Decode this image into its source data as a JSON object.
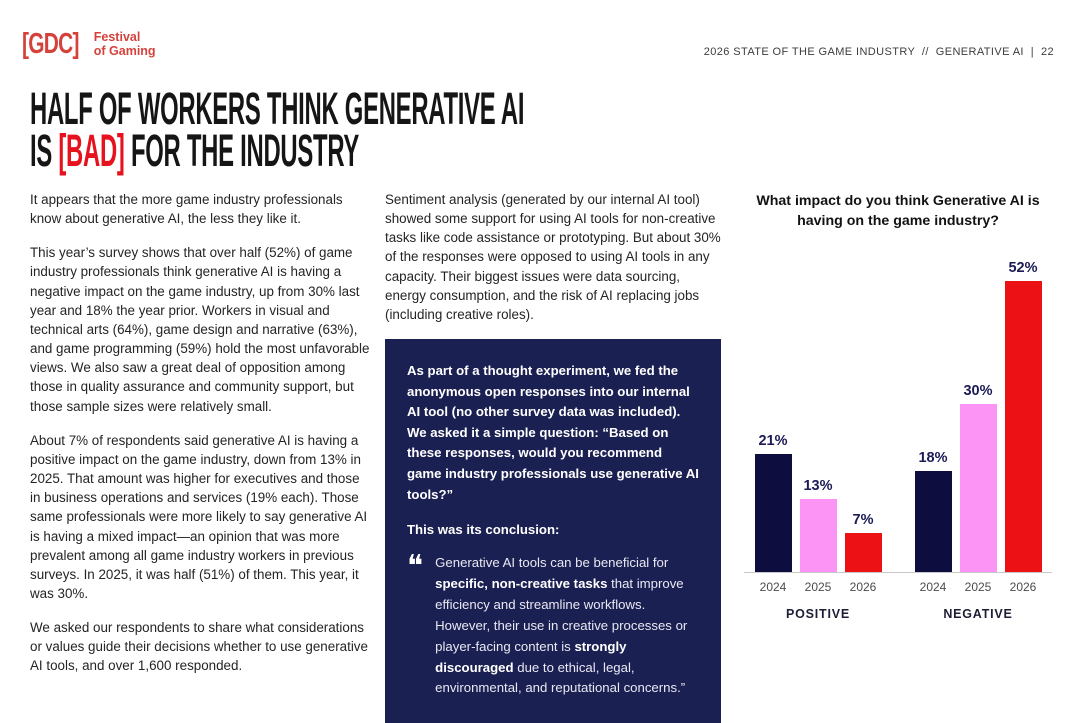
{
  "header": {
    "logo": {
      "mark": "[GDC]",
      "line1": "Festival",
      "line2": "of Gaming",
      "color": "#d5423c"
    },
    "meta": "2026 STATE OF THE GAME INDUSTRY  //  GENERATIVE AI  |  22"
  },
  "title": {
    "line1": "HALF OF WORKERS THINK GENERATIVE AI",
    "line2_pre": "IS ",
    "line2_red": "[BAD]",
    "line2_post": " FOR THE INDUSTRY",
    "red_color": "#e6131f"
  },
  "left_column": {
    "paragraphs": [
      "It appears that the more game industry professionals know about generative AI, the less they like it.",
      "This year’s survey shows that over half (52%) of game industry professionals think generative AI is having a negative impact on the game industry, up from 30% last year and 18% the year prior. Workers in visual and technical arts (64%), game design and narrative (63%), and game programming (59%) hold the most unfavorable views. We also saw a great deal of opposition among those in quality assurance and community support, but those sample sizes were relatively small.",
      "About 7% of respondents said generative AI is having a positive impact on the game industry, down from 13% in 2025. That amount was higher for executives and those in business operations and services (19% each). Those same professionals were more likely to say generative AI is having a mixed impact—an opinion that was more prevalent among all game industry workers in previous surveys. In 2025, it was half (51%) of them. This year, it was 30%.",
      "We asked our respondents to share what considerations or values guide their decisions whether to use generative AI tools, and over 1,600 responded."
    ]
  },
  "middle_column": {
    "paragraph": "Sentiment analysis (generated by our internal AI tool) showed some support for using AI tools for non-creative tasks like code assistance or prototyping. But about 30% of the responses were opposed to using AI tools in any capacity. Their biggest issues were data sourcing, energy consumption, and the risk of AI replacing jobs (including creative roles).",
    "callout": {
      "bg_color": "#1b2052",
      "intro": "As part of a thought experiment, we fed the anonymous open responses into our internal AI tool (no other survey data was included). We asked it a simple question: “Based on these responses, would you recommend game industry professionals use generative AI tools?”",
      "conclusion_label": "This was its conclusion:",
      "quote_icon": "❝",
      "quote_segments": [
        {
          "text": "Generative AI tools can be beneficial for ",
          "bold": false
        },
        {
          "text": "specific, non-creative tasks",
          "bold": true
        },
        {
          "text": " that improve efficiency and streamline workflows. However, their use in creative processes or player-facing content is ",
          "bold": false
        },
        {
          "text": "strongly discouraged",
          "bold": true
        },
        {
          "text": " due to ethical, legal, environmental, and reputational concerns.”",
          "bold": false
        }
      ]
    }
  },
  "chart_data": {
    "type": "bar",
    "title": "What impact do you think Generative AI is having on the game industry?",
    "unit": "%",
    "ylim": [
      0,
      55
    ],
    "grid": false,
    "legend": "none",
    "value_labels": true,
    "bar_colors": {
      "2024": "#0d0d3f",
      "2025": "#fb94f5",
      "2026": "#ec1115"
    },
    "value_label_color": "#1b1b55",
    "groups": [
      {
        "label": "POSITIVE",
        "categories": [
          "2024",
          "2025",
          "2026"
        ],
        "values": [
          21,
          13,
          7
        ]
      },
      {
        "label": "NEGATIVE",
        "categories": [
          "2024",
          "2025",
          "2026"
        ],
        "values": [
          18,
          30,
          52
        ]
      }
    ]
  }
}
